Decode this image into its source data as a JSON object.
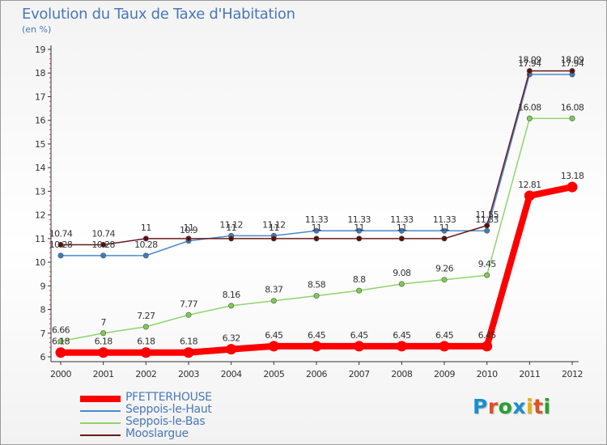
{
  "title": "Evolution du Taux de Taxe d'Habitation",
  "subtitle": "(en %)",
  "logo_text": "Proxiti",
  "logo_colors": [
    "#1a8fd0",
    "#e05020",
    "#27a030",
    "#1a8fd0",
    "#e8b010",
    "#e05020",
    "#27a030"
  ],
  "chart_data": {
    "type": "line",
    "title": "Evolution du Taux de Taxe d'Habitation",
    "ylabel": "(en %)",
    "xlabel": "",
    "x": [
      "2000",
      "2001",
      "2002",
      "2003",
      "2004",
      "2005",
      "2006",
      "2007",
      "2008",
      "2009",
      "2010",
      "2011",
      "2012"
    ],
    "ylim": [
      6,
      19
    ],
    "yticks": [
      "6",
      "7",
      "8",
      "9",
      "10",
      "11",
      "12",
      "13",
      "14",
      "15",
      "16",
      "17",
      "18",
      "19"
    ],
    "grid": false,
    "legend_position": "bottom-left",
    "series": [
      {
        "name": "PFETTERHOUSE",
        "color": "#ff0000",
        "values": [
          6.18,
          6.18,
          6.18,
          6.18,
          6.32,
          6.45,
          6.45,
          6.45,
          6.45,
          6.45,
          6.45,
          12.81,
          13.18
        ],
        "labels": [
          "6.18",
          "6.18",
          "6.18",
          "6.18",
          "6.32",
          "6.45",
          "6.45",
          "6.45",
          "6.45",
          "6.45",
          "6.45",
          "12.81",
          "13.18"
        ]
      },
      {
        "name": "Seppois-le-Haut",
        "color": "#4a8acb",
        "values": [
          10.28,
          10.28,
          10.28,
          10.9,
          11.12,
          11.12,
          11.33,
          11.33,
          11.33,
          11.33,
          11.33,
          17.94,
          17.94
        ],
        "labels": [
          "10.28",
          "10.28",
          "10.28",
          "10.9",
          "11.12",
          "11.12",
          "11.33",
          "11.33",
          "11.33",
          "11.33",
          "11.33",
          "17.94",
          "17.94"
        ]
      },
      {
        "name": "Seppois-le-Bas",
        "color": "#8fd46b",
        "values": [
          6.66,
          7,
          7.27,
          7.77,
          8.16,
          8.37,
          8.58,
          8.8,
          9.08,
          9.26,
          9.45,
          16.08,
          16.08
        ],
        "labels": [
          "6.66",
          "7",
          "7.27",
          "7.77",
          "8.16",
          "8.37",
          "8.58",
          "8.8",
          "9.08",
          "9.26",
          "9.45",
          "16.08",
          "16.08"
        ]
      },
      {
        "name": "Mooslargue",
        "color": "#6b1a1a",
        "values": [
          10.74,
          10.74,
          11,
          11,
          11,
          11,
          11,
          11,
          11,
          11,
          11.55,
          18.09,
          18.09
        ],
        "labels": [
          "10.74",
          "10.74",
          "11",
          "11",
          "11",
          "11",
          "11",
          "11",
          "11",
          "11",
          "11.55",
          "18.09",
          "18.09"
        ]
      }
    ]
  }
}
